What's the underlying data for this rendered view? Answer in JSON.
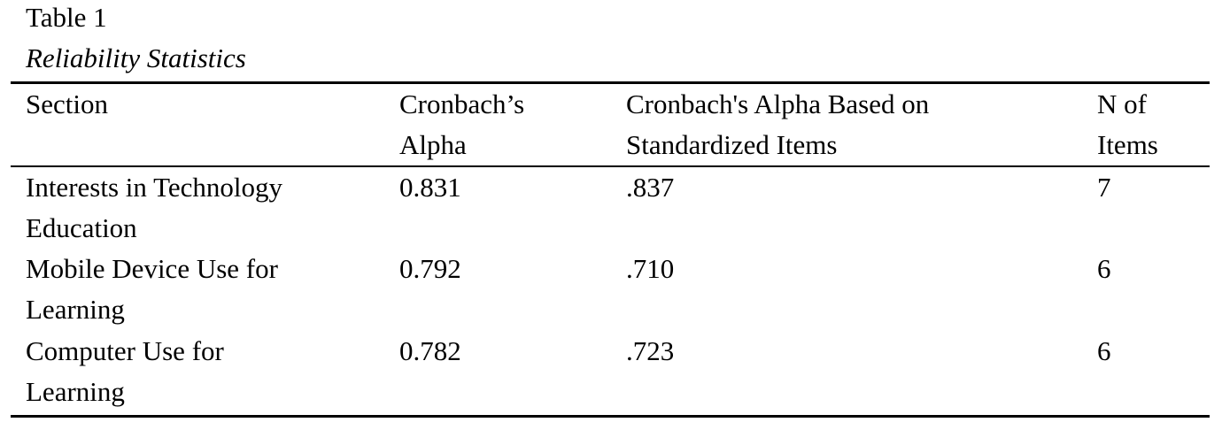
{
  "table": {
    "number": "Table 1",
    "caption": "Reliability Statistics",
    "headers": [
      "Section",
      "Cronbach’s Alpha",
      "Cronbach's Alpha Based on Standardized Items",
      "N of Items"
    ],
    "header_lines": [
      [
        "Section"
      ],
      [
        "Cronbach’s",
        "Alpha"
      ],
      [
        "Cronbach's Alpha Based on",
        "Standardized Items"
      ],
      [
        "N of",
        "Items"
      ]
    ],
    "rows": [
      {
        "section": "Interests in Technology Education",
        "section_lines": [
          "Interests in Technology",
          "Education"
        ],
        "cronbach_alpha": "0.831",
        "alpha_standardized": ".837",
        "n_items": "7"
      },
      {
        "section": "Mobile Device Use for Learning",
        "section_lines": [
          "Mobile Device Use for",
          "Learning"
        ],
        "cronbach_alpha": "0.792",
        "alpha_standardized": ".710",
        "n_items": "6"
      },
      {
        "section": "Computer Use for Learning",
        "section_lines": [
          "Computer Use for",
          "Learning"
        ],
        "cronbach_alpha": "0.782",
        "alpha_standardized": ".723",
        "n_items": "6"
      }
    ]
  }
}
